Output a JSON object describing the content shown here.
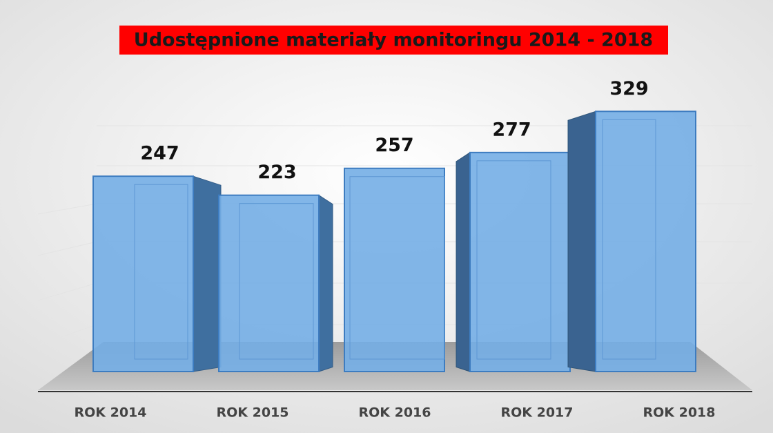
{
  "chart_data": {
    "type": "bar3d",
    "title": "Udostępnione materiały monitoringu 2014 - 2018",
    "categories": [
      "ROK 2014",
      "ROK 2015",
      "ROK 2016",
      "ROK 2017",
      "ROK 2018"
    ],
    "values": [
      247,
      223,
      257,
      277,
      329
    ],
    "color": "#74aee6",
    "ylim": [
      0,
      400
    ]
  }
}
